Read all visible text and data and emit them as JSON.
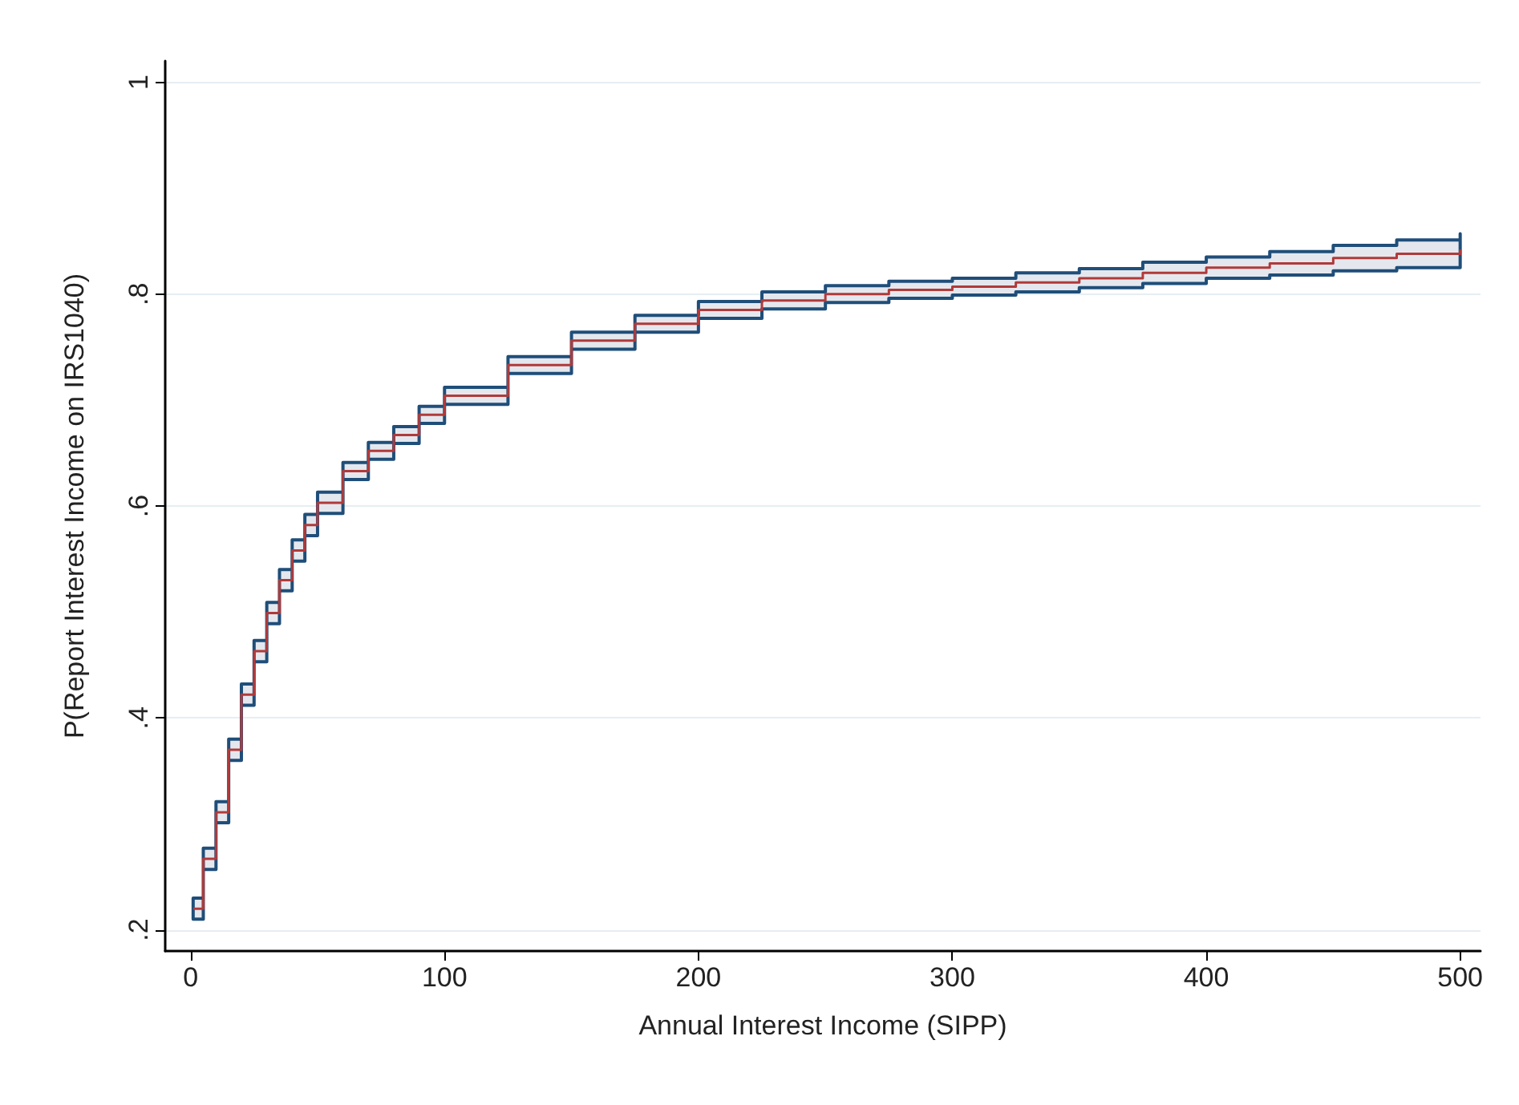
{
  "chart_data": {
    "type": "step",
    "xlabel": "Annual Interest Income (SIPP)",
    "ylabel": "P(Report Interest Income on IRS1040)",
    "xlim": [
      -10,
      508
    ],
    "ylim": [
      0.18,
      1.02
    ],
    "xticks": [
      0,
      100,
      200,
      300,
      400,
      500
    ],
    "yticks": [
      {
        "value": 0.2,
        "label": ".2"
      },
      {
        "value": 0.4,
        "label": ".4"
      },
      {
        "value": 0.6,
        "label": ".6"
      },
      {
        "value": 0.8,
        "label": ".8"
      },
      {
        "value": 1,
        "label": "1"
      }
    ],
    "grid": "y",
    "marker": "none",
    "line_style": "solid",
    "x": [
      1,
      5,
      10,
      15,
      20,
      25,
      30,
      35,
      40,
      45,
      50,
      60,
      70,
      80,
      90,
      100,
      125,
      150,
      175,
      200,
      225,
      250,
      275,
      300,
      325,
      350,
      375,
      400,
      425,
      450,
      475,
      500
    ],
    "series": [
      {
        "color": "#b03a3a",
        "values": [
          0.22,
          0.267,
          0.311,
          0.37,
          0.422,
          0.463,
          0.499,
          0.53,
          0.558,
          0.582,
          0.603,
          0.633,
          0.652,
          0.667,
          0.686,
          0.704,
          0.733,
          0.756,
          0.772,
          0.785,
          0.794,
          0.8,
          0.804,
          0.807,
          0.811,
          0.815,
          0.82,
          0.825,
          0.829,
          0.834,
          0.838,
          0.842
        ],
        "lower": [
          0.21,
          0.257,
          0.301,
          0.36,
          0.412,
          0.453,
          0.489,
          0.52,
          0.548,
          0.572,
          0.593,
          0.625,
          0.644,
          0.659,
          0.678,
          0.696,
          0.725,
          0.748,
          0.764,
          0.777,
          0.786,
          0.792,
          0.796,
          0.799,
          0.802,
          0.806,
          0.81,
          0.815,
          0.818,
          0.822,
          0.825,
          0.828
        ],
        "upper": [
          0.23,
          0.277,
          0.321,
          0.38,
          0.432,
          0.473,
          0.509,
          0.54,
          0.568,
          0.592,
          0.613,
          0.641,
          0.66,
          0.675,
          0.694,
          0.712,
          0.741,
          0.764,
          0.78,
          0.793,
          0.802,
          0.808,
          0.812,
          0.815,
          0.82,
          0.824,
          0.83,
          0.835,
          0.84,
          0.846,
          0.851,
          0.857
        ]
      }
    ]
  }
}
